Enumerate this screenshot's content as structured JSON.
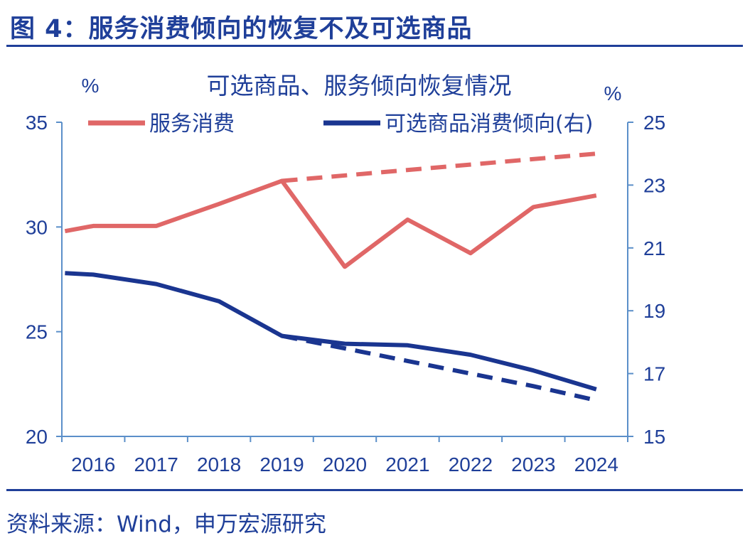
{
  "figure": {
    "title": "图 4：服务消费倾向的恢复不及可选商品",
    "source": "资料来源：Wind，申万宏源研究"
  },
  "chart_data": {
    "type": "line",
    "title": "可选商品、服务倾向恢复情况",
    "x": [
      "2016",
      "2017",
      "2018",
      "2019",
      "2020",
      "2021",
      "2022",
      "2023",
      "2024"
    ],
    "ylabel_left": "%",
    "ylabel_right": "%",
    "ylim_left": [
      20,
      35
    ],
    "yticks_left": [
      20,
      25,
      30,
      35
    ],
    "ylim_right": [
      15,
      25
    ],
    "yticks_right": [
      15,
      17,
      19,
      21,
      23,
      25
    ],
    "grid": false,
    "legend_position": "top",
    "series": [
      {
        "name": "服务消费",
        "axis": "left",
        "color": "#e06767",
        "points": [
          [
            2015.55,
            29.8
          ],
          [
            2016.0,
            30.05
          ],
          [
            2017.0,
            30.05
          ],
          [
            2018.0,
            31.1
          ],
          [
            2019.0,
            32.2
          ],
          [
            2020.0,
            28.1
          ],
          [
            2021.0,
            30.35
          ],
          [
            2022.0,
            28.75
          ],
          [
            2023.0,
            30.95
          ],
          [
            2024.0,
            31.5
          ]
        ]
      },
      {
        "name": "服务消费趋势",
        "legend": false,
        "axis": "left",
        "color": "#e06767",
        "dashed": true,
        "points": [
          [
            2019.0,
            32.2
          ],
          [
            2024.0,
            33.5
          ]
        ]
      },
      {
        "name": "可选商品消费倾向(右)",
        "axis": "right",
        "color": "#1a3590",
        "points": [
          [
            2015.55,
            20.2
          ],
          [
            2016.0,
            20.15
          ],
          [
            2017.0,
            19.85
          ],
          [
            2018.0,
            19.3
          ],
          [
            2019.0,
            18.2
          ],
          [
            2020.0,
            17.95
          ],
          [
            2021.0,
            17.9
          ],
          [
            2022.0,
            17.6
          ],
          [
            2023.0,
            17.1
          ],
          [
            2024.0,
            16.5
          ]
        ]
      },
      {
        "name": "可选商品消费倾向趋势",
        "legend": false,
        "axis": "right",
        "color": "#1a3590",
        "dashed": true,
        "points": [
          [
            2019.0,
            18.2
          ],
          [
            2020.0,
            17.8
          ],
          [
            2021.0,
            17.4
          ],
          [
            2022.0,
            17.0
          ],
          [
            2023.0,
            16.6
          ],
          [
            2024.0,
            16.15
          ]
        ]
      }
    ]
  }
}
